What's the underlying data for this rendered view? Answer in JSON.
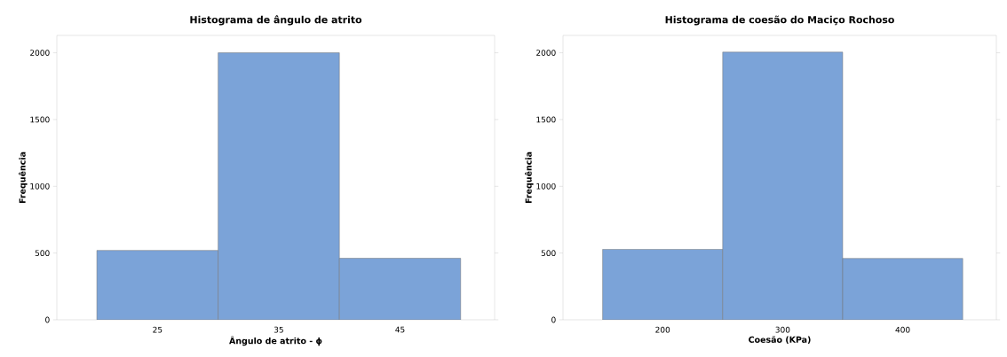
{
  "chart_data": [
    {
      "type": "histogram",
      "title": "Histograma de ângulo de atrito",
      "xlabel": "Ângulo de atrito - ϕ",
      "ylabel": "Frequência",
      "bins": [
        20,
        30,
        40,
        50
      ],
      "values": [
        520,
        2000,
        461
      ],
      "color": "#7ba3d8",
      "xlim": [
        16.7,
        52.8
      ],
      "xticks": [
        25,
        35,
        45
      ],
      "ylim": [
        0,
        2130
      ],
      "yticks": [
        0,
        500,
        1000,
        1500,
        2000
      ],
      "grid": false
    },
    {
      "type": "histogram",
      "title": "Histograma de coesão do Maciço Rochoso",
      "xlabel": "Coesão (KPa)",
      "ylabel": "Frequência",
      "bins": [
        150,
        250,
        350,
        450
      ],
      "values": [
        528,
        2005,
        460
      ],
      "color": "#7ba3d8",
      "xlim": [
        117,
        478
      ],
      "xticks": [
        200,
        300,
        400
      ],
      "ylim": [
        0,
        2130
      ],
      "yticks": [
        0,
        500,
        1000,
        1500,
        2000
      ],
      "grid": false
    }
  ]
}
